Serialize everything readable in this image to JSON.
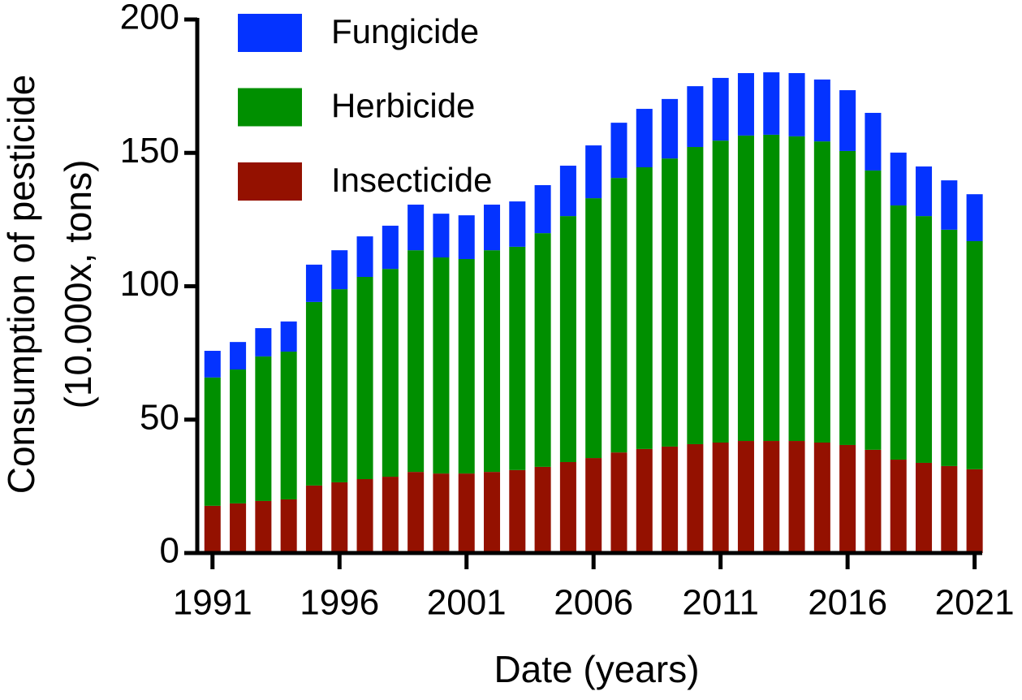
{
  "chart_data": {
    "type": "stacked_bar",
    "xlabel": "Date (years)",
    "ylabel": [
      "Consumption of pesticide",
      "(10.000x, tons)"
    ],
    "x": [
      1991,
      1992,
      1993,
      1994,
      1995,
      1996,
      1997,
      1998,
      1999,
      2000,
      2001,
      2002,
      2003,
      2004,
      2005,
      2006,
      2007,
      2008,
      2009,
      2010,
      2011,
      2012,
      2013,
      2014,
      2015,
      2016,
      2017,
      2018,
      2019,
      2020,
      2021
    ],
    "xlim": [
      1990.4,
      2021.3
    ],
    "xticks": [
      1991,
      1996,
      2001,
      2006,
      2011,
      2016,
      2021
    ],
    "ylim": [
      0,
      200
    ],
    "yticks": [
      0,
      50,
      100,
      150,
      200
    ],
    "legend": "upper left",
    "series": [
      {
        "name": "Fungicide",
        "color": "#0433ff",
        "values": [
          10.0,
          10.3,
          10.6,
          11.3,
          14.0,
          14.6,
          15.2,
          16.2,
          17.1,
          16.4,
          16.4,
          17.1,
          17.0,
          18.0,
          18.9,
          19.8,
          20.7,
          21.9,
          22.3,
          22.8,
          23.5,
          23.4,
          23.4,
          23.7,
          23.2,
          22.8,
          21.6,
          19.8,
          18.6,
          18.5,
          17.6
        ]
      },
      {
        "name": "Herbicide",
        "color": "#008f00",
        "values": [
          48.1,
          50.2,
          54.2,
          55.4,
          68.8,
          72.4,
          75.8,
          77.9,
          83.1,
          81.0,
          80.4,
          83.1,
          83.7,
          87.6,
          92.2,
          97.4,
          102.9,
          105.6,
          108.0,
          111.4,
          113.2,
          114.5,
          114.8,
          114.2,
          112.9,
          110.2,
          104.7,
          95.3,
          92.5,
          88.6,
          85.5
        ]
      },
      {
        "name": "Insecticide",
        "color": "#941100",
        "values": [
          17.7,
          18.6,
          19.5,
          20.1,
          25.3,
          26.5,
          27.7,
          28.6,
          30.4,
          29.8,
          29.8,
          30.4,
          31.1,
          32.3,
          34.1,
          35.6,
          37.7,
          39.0,
          39.9,
          40.8,
          41.4,
          42.0,
          42.0,
          42.0,
          41.4,
          40.5,
          38.7,
          35.0,
          33.8,
          32.6,
          31.4
        ]
      }
    ]
  }
}
